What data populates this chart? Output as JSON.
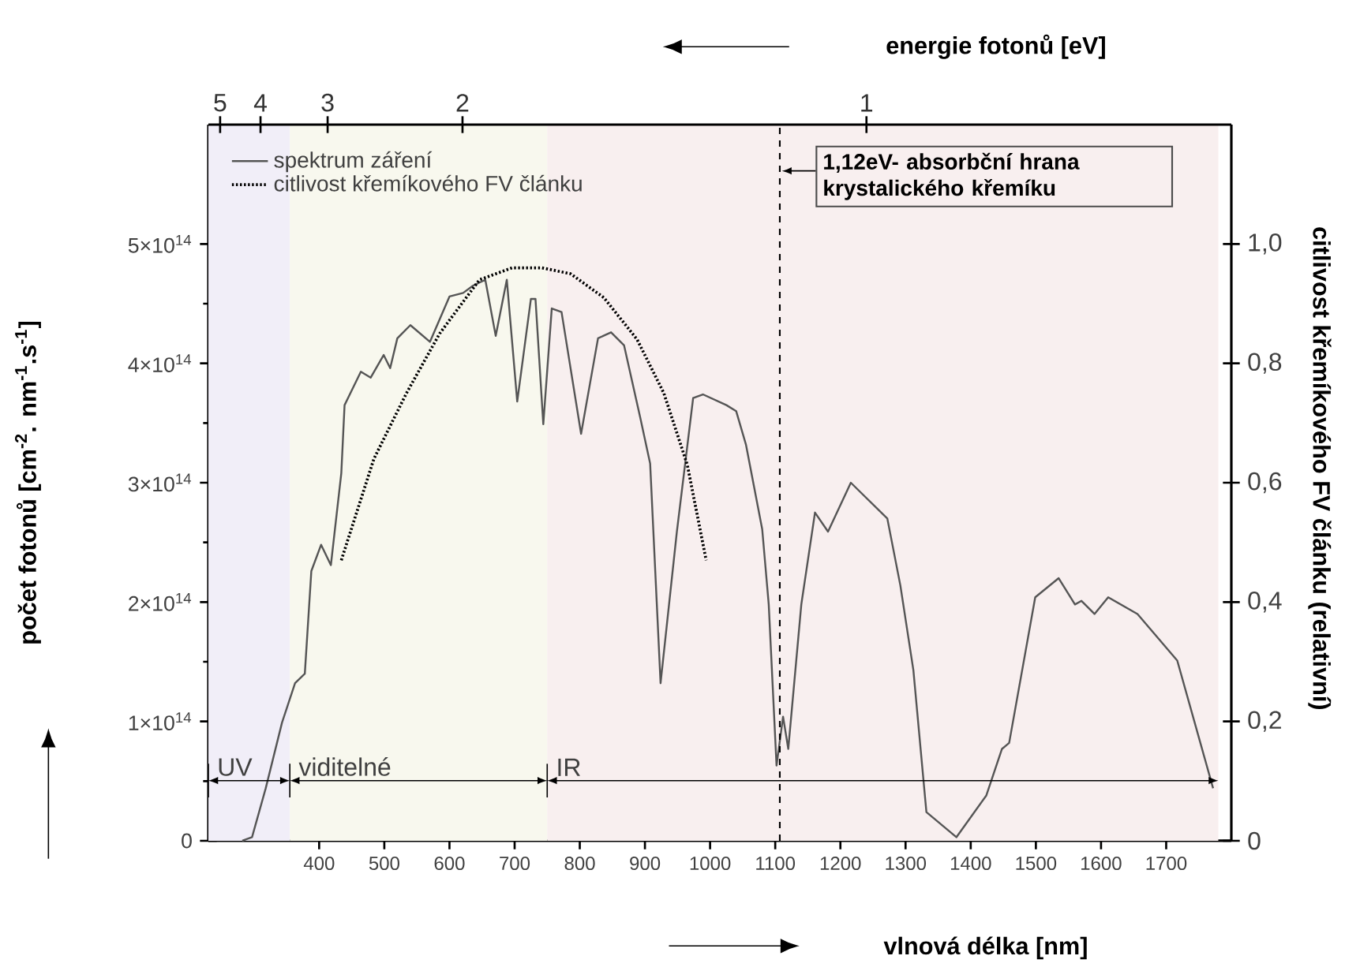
{
  "chart_data": {
    "type": "line",
    "xlabel": "vlnová délka [nm]",
    "ylabel": "počet fotonů [cm$^{-2}$. nm$^{-1}$.s$^{-1}$]",
    "y2label": "citlivost křemíkového FV článku (relativní)",
    "annotations": [
      "energie fotonů [eV]",
      {
        "text": "5",
        "x": 248,
        "y": 600000000000000.0
      },
      {
        "text": "4",
        "x": 310,
        "y": 600000000000000.0
      },
      {
        "text": "3",
        "x": 413,
        "y": 600000000000000.0
      },
      {
        "text": "2",
        "x": 620,
        "y": 600000000000000.0
      },
      {
        "text": "1",
        "x": 1240,
        "y": 600000000000000.0
      }
    ],
    "xlim": [
      230,
      1800
    ],
    "xticks": [
      400,
      {
        "value": 500,
        "label": "500"
      },
      600,
      700,
      800,
      900,
      {
        "value": 1000,
        "label": "1000"
      },
      1100,
      1200,
      1300,
      1400,
      {
        "value": 1500,
        "label": "1500"
      },
      1600,
      1700
    ],
    "ylim": [
      0,
      600000000000000.0
    ],
    "yticks": [
      0,
      {
        "value": 100000000000000.0,
        "label": "1×10$^{14}$"
      },
      {
        "value": 200000000000000.0,
        "label": "2×10$^{14}$"
      },
      {
        "value": 300000000000000.0,
        "label": "3×10$^{14}$"
      },
      {
        "value": 400000000000000.0,
        "label": "4×10$^{14}$"
      },
      {
        "value": 500000000000000.0,
        "label": "5×10$^{14}$"
      }
    ],
    "y2lim": [
      0,
      1.2
    ],
    "y2ticks": [
      0,
      {
        "value": 0.2,
        "label": "0,2"
      },
      {
        "value": 0.4,
        "label": "0,4"
      },
      {
        "value": 0.6,
        "label": "0,6"
      },
      {
        "value": 0.8,
        "label": "0,8"
      },
      {
        "value": 1.0,
        "label": "1,0"
      }
    ],
    "legend": "top left",
    "series": [
      {
        "name": "spektrum záření",
        "color": "#555555",
        "line_style": "solid",
        "axis": "y",
        "x": [
          282,
          297,
          318,
          343,
          363,
          378,
          388,
          403,
          418,
          434,
          439,
          464,
          479,
          499,
          509,
          520,
          540,
          570,
          600,
          621,
          636,
          655,
          671,
          688,
          704,
          725,
          732,
          744,
          757,
          772,
          802,
          828,
          848,
          868,
          893,
          908,
          924,
          949,
          974,
          989,
          1025,
          1040,
          1055,
          1080,
          1090,
          1102,
          1112,
          1120,
          1140,
          1161,
          1181,
          1216,
          1272,
          1292,
          1312,
          1332,
          1378,
          1424,
          1448,
          1459,
          1499,
          1535,
          1560,
          1570,
          1590,
          1611,
          1656,
          1717,
          1772
        ],
        "values": [
          0,
          3000000000000.0,
          44000000000000.0,
          99000000000000.0,
          132000000000000.0,
          140000000000000.0,
          226000000000000.0,
          248000000000000.0,
          231000000000000.0,
          308000000000000.0,
          365000000000000.0,
          393000000000000.0,
          388000000000000.0,
          407000000000000.0,
          396000000000000.0,
          421000000000000.0,
          432000000000000.0,
          418000000000000.0,
          456000000000000.0,
          459000000000000.0,
          465000000000000.0,
          470000000000000.0,
          423000000000000.0,
          470000000000000.0,
          368000000000000.0,
          454000000000000.0,
          454000000000000.0,
          349000000000000.0,
          446000000000000.0,
          443000000000000.0,
          341000000000000.0,
          421000000000000.0,
          426000000000000.0,
          415000000000000.0,
          354000000000000.0,
          316000000000000.0,
          132000000000000.0,
          259000000000000.0,
          371000000000000.0,
          374000000000000.0,
          365000000000000.0,
          360000000000000.0,
          332000000000000.0,
          261000000000000.0,
          198000000000000.0,
          63000000000000.0,
          104000000000000.0,
          77000000000000.0,
          198000000000000.0,
          275000000000000.0,
          259000000000000.0,
          300000000000000.0,
          270000000000000.0,
          214000000000000.0,
          143000000000000.0,
          24000000000000.0,
          3000000000000.0,
          38000000000000.0,
          77000000000000.0,
          82000000000000.0,
          204000000000000.0,
          220000000000000.0,
          198000000000000.0,
          201000000000000.0,
          190000000000000.0,
          204000000000000.0,
          190000000000000.0,
          151000000000000.0,
          44000000000000.0
        ]
      },
      {
        "name": "citlivost křemíkového FV článku",
        "color": "#000000",
        "line_style": "dotted",
        "axis": "y2",
        "x": [
          434,
          484,
          534,
          585,
          646,
          696,
          742,
          786,
          837,
          888,
          929,
          965,
          994
        ],
        "values": [
          0.47,
          0.64,
          0.75,
          0.85,
          0.94,
          0.96,
          0.96,
          0.95,
          0.91,
          0.84,
          0.75,
          0.63,
          0.47
        ]
      }
    ],
    "ref_lines": [
      {
        "axis": "x",
        "value": 1107,
        "label": "1,12eV- absorbční hrana krystalického křemíku",
        "color": "#000000",
        "line_style": "dashed"
      }
    ],
    "bands": [
      {
        "axis": "x",
        "from": 230,
        "to": 355,
        "label": "UV",
        "color": "#f1eef8"
      },
      {
        "axis": "x",
        "from": 355,
        "to": 750,
        "label": "viditelné",
        "color": "#f8f8ee"
      },
      {
        "axis": "x",
        "from": 750,
        "to": 1780,
        "label": "IR",
        "color": "#f8efef"
      }
    ]
  }
}
